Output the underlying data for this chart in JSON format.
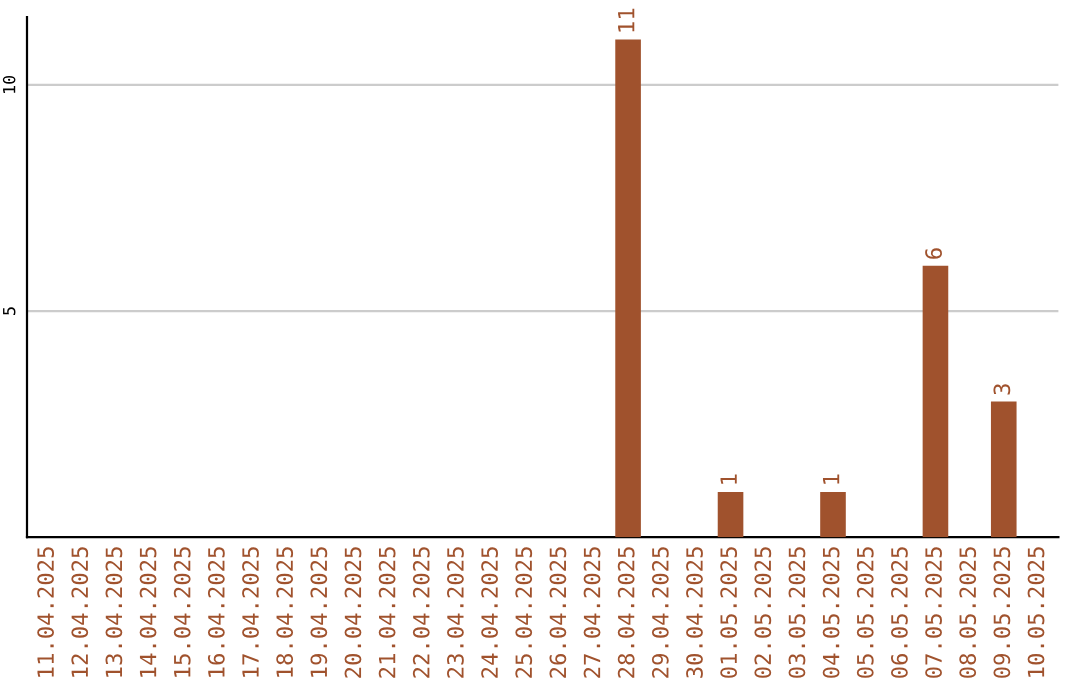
{
  "chart_data": {
    "type": "bar",
    "categories": [
      "11.04.2025",
      "12.04.2025",
      "13.04.2025",
      "14.04.2025",
      "15.04.2025",
      "16.04.2025",
      "17.04.2025",
      "18.04.2025",
      "19.04.2025",
      "20.04.2025",
      "21.04.2025",
      "22.04.2025",
      "23.04.2025",
      "24.04.2025",
      "25.04.2025",
      "26.04.2025",
      "27.04.2025",
      "28.04.2025",
      "29.04.2025",
      "30.04.2025",
      "01.05.2025",
      "02.05.2025",
      "03.05.2025",
      "04.05.2025",
      "05.05.2025",
      "06.05.2025",
      "07.05.2025",
      "08.05.2025",
      "09.05.2025",
      "10.05.2025"
    ],
    "values": [
      0,
      0,
      0,
      0,
      0,
      0,
      0,
      0,
      0,
      0,
      0,
      0,
      0,
      0,
      0,
      0,
      0,
      11,
      0,
      0,
      1,
      0,
      0,
      1,
      0,
      0,
      6,
      0,
      3,
      0
    ],
    "value_labels": [
      null,
      null,
      null,
      null,
      null,
      null,
      null,
      null,
      null,
      null,
      null,
      null,
      null,
      null,
      null,
      null,
      null,
      "11",
      null,
      null,
      "1",
      null,
      null,
      "1",
      null,
      null,
      "6",
      null,
      "3",
      null
    ],
    "color": "#a0522d",
    "ylim": [
      0,
      11.5
    ],
    "yticks": [
      5,
      10
    ],
    "grid": "y"
  }
}
